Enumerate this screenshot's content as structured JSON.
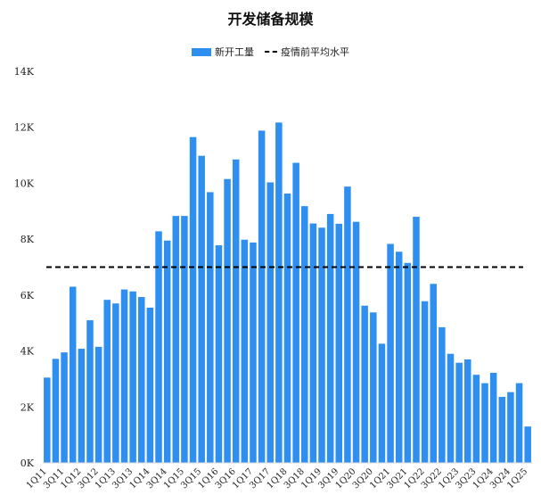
{
  "title": "开发储备规模",
  "legend": {
    "bar_label": "新开工量",
    "line_label": "疫情前平均水平"
  },
  "colors": {
    "bar": "#2F8FF0",
    "reference_line": "#000000"
  },
  "chart_data": {
    "type": "bar",
    "title": "开发储备规模",
    "xlabel": "",
    "ylabel": "",
    "ylim": [
      0,
      14000
    ],
    "yticks": [
      0,
      2000,
      4000,
      6000,
      8000,
      10000,
      12000,
      14000
    ],
    "ytick_labels": [
      "0K",
      "2K",
      "4K",
      "6K",
      "8K",
      "10K",
      "12K",
      "14K"
    ],
    "grid": false,
    "legend_position": "top-center",
    "categories": [
      "1Q11",
      "2Q11",
      "3Q11",
      "4Q11",
      "1Q12",
      "2Q12",
      "3Q12",
      "4Q12",
      "1Q13",
      "2Q13",
      "3Q13",
      "4Q13",
      "1Q14",
      "2Q14",
      "3Q14",
      "4Q14",
      "1Q15",
      "2Q15",
      "3Q15",
      "4Q15",
      "1Q16",
      "2Q16",
      "3Q16",
      "4Q16",
      "1Q17",
      "2Q17",
      "3Q17",
      "4Q17",
      "1Q18",
      "2Q18",
      "3Q18",
      "4Q18",
      "1Q19",
      "2Q19",
      "3Q19",
      "4Q19",
      "1Q20",
      "2Q20",
      "3Q20",
      "4Q20",
      "1Q21",
      "2Q21",
      "3Q21",
      "4Q21",
      "1Q22",
      "2Q22",
      "3Q22",
      "4Q22",
      "1Q23",
      "2Q23",
      "3Q23",
      "4Q23",
      "1Q24",
      "2Q24",
      "3Q24",
      "4Q24",
      "1Q25"
    ],
    "tick_labels": [
      "1Q11",
      "3Q11",
      "1Q12",
      "3Q12",
      "1Q13",
      "3Q13",
      "1Q14",
      "3Q14",
      "1Q15",
      "3Q15",
      "1Q16",
      "3Q16",
      "1Q17",
      "3Q17",
      "1Q18",
      "3Q18",
      "1Q19",
      "3Q19",
      "1Q20",
      "3Q20",
      "1Q21",
      "3Q21",
      "1Q22",
      "3Q22",
      "1Q23",
      "3Q23",
      "1Q24",
      "3Q24",
      "1Q25"
    ],
    "series": [
      {
        "name": "新开工量",
        "values": [
          3050,
          3720,
          3950,
          6300,
          4080,
          5100,
          4150,
          5830,
          5700,
          6200,
          6130,
          5930,
          5550,
          8280,
          7950,
          8830,
          8830,
          11650,
          10980,
          9680,
          7780,
          10150,
          10850,
          7980,
          7880,
          11880,
          10030,
          12170,
          9630,
          10730,
          9180,
          8560,
          8410,
          8900,
          8550,
          9880,
          8620,
          5620,
          5380,
          4260,
          7830,
          7550,
          7150,
          8800,
          5780,
          6400,
          4850,
          3900,
          3580,
          3700,
          3150,
          2850,
          3220,
          2360,
          2530,
          2850,
          1300
        ]
      }
    ],
    "reference_line": {
      "name": "疫情前平均水平",
      "value": 7000,
      "style": "dashed"
    }
  }
}
